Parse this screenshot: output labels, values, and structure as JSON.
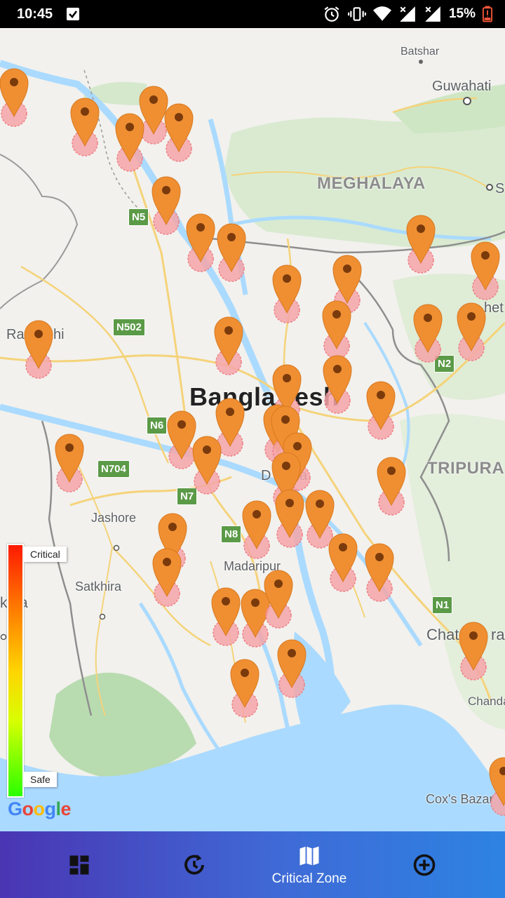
{
  "status_bar": {
    "time": "10:45",
    "battery": "15%",
    "icons": [
      "checkbox-icon",
      "alarm-icon",
      "vibrate-icon",
      "wifi-icon",
      "signal-icon",
      "signal-icon-2",
      "battery-low-icon"
    ]
  },
  "map": {
    "places": [
      {
        "name": "Batshar"
      },
      {
        "name": "Guwahati"
      },
      {
        "name": "MEGHALAYA"
      },
      {
        "name": "S"
      },
      {
        "name": "Ra"
      },
      {
        "name": "hi"
      },
      {
        "name": "Bangla"
      },
      {
        "name": "esh"
      },
      {
        "name": "TRIPURA"
      },
      {
        "name": "Jashore"
      },
      {
        "name": "Madaripur"
      },
      {
        "name": "Satkhira"
      },
      {
        "name": "kata"
      },
      {
        "name": "Chat"
      },
      {
        "name": "ram"
      },
      {
        "name": "Chanda"
      },
      {
        "name": "Cox's Bazar"
      },
      {
        "name": "D"
      },
      {
        "name": "a"
      },
      {
        "name": "het"
      }
    ],
    "roads": [
      "N5",
      "N502",
      "N6",
      "N704",
      "N7",
      "N8",
      "N2",
      "N1"
    ],
    "marker_color": "#ef8f32",
    "zone_color": "#f5a5a8"
  },
  "legend": {
    "top_label": "Critical",
    "bottom_label": "Safe"
  },
  "attribution": "Google",
  "bottom_nav": {
    "items": [
      {
        "icon": "dashboard-icon",
        "label": ""
      },
      {
        "icon": "history-icon",
        "label": ""
      },
      {
        "icon": "map-icon",
        "label": "Critical Zone",
        "active": true
      },
      {
        "icon": "add-circle-icon",
        "label": ""
      }
    ]
  }
}
